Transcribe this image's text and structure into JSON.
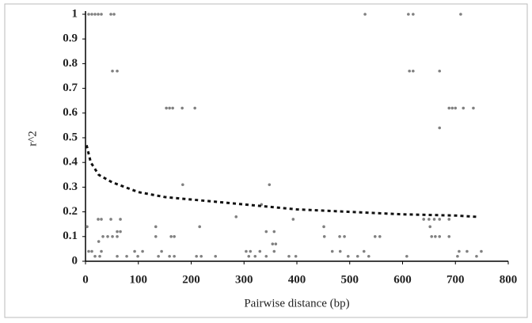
{
  "chart_data": {
    "type": "scatter",
    "x_label": "Pairwise distance (bp)",
    "y_label": "r^2",
    "xlim": [
      0,
      800
    ],
    "xticks": [
      0,
      100,
      200,
      300,
      400,
      500,
      600,
      700,
      800
    ],
    "ylim": [
      0,
      1
    ],
    "yticks": [
      0,
      0.1,
      0.2,
      0.3,
      0.4,
      0.5,
      0.6,
      0.7,
      0.8,
      0.9,
      1
    ],
    "grid": false,
    "series": [
      {
        "color": "#808080",
        "x": [
          6,
          12,
          18,
          24,
          30,
          48,
          54,
          529,
          611,
          620,
          710,
          51,
          60,
          613,
          620,
          670,
          153,
          159,
          165,
          183,
          207,
          688,
          694,
          700,
          715,
          734,
          670,
          184,
          348,
          333,
          285,
          24,
          30,
          48,
          66,
          393,
          640,
          650,
          660,
          670,
          688,
          3,
          133,
          216,
          451,
          652,
          60,
          66,
          342,
          357,
          33,
          42,
          51,
          60,
          133,
          162,
          168,
          452,
          481,
          490,
          548,
          557,
          655,
          662,
          670,
          688,
          25,
          354,
          360,
          6,
          12,
          30,
          93,
          108,
          144,
          304,
          312,
          330,
          357,
          467,
          482,
          527,
          707,
          722,
          749,
          18,
          27,
          60,
          78,
          99,
          138,
          159,
          168,
          210,
          219,
          246,
          309,
          321,
          342,
          385,
          398,
          497,
          515,
          536,
          608,
          704,
          740
        ],
        "values": [
          1,
          1,
          1,
          1,
          1,
          1,
          1,
          1,
          1,
          1,
          1,
          0.77,
          0.77,
          0.77,
          0.77,
          0.77,
          0.62,
          0.62,
          0.62,
          0.62,
          0.62,
          0.62,
          0.62,
          0.62,
          0.62,
          0.62,
          0.54,
          0.31,
          0.31,
          0.23,
          0.18,
          0.17,
          0.17,
          0.17,
          0.17,
          0.17,
          0.17,
          0.17,
          0.17,
          0.17,
          0.17,
          0.14,
          0.14,
          0.14,
          0.14,
          0.14,
          0.12,
          0.12,
          0.12,
          0.12,
          0.1,
          0.1,
          0.1,
          0.1,
          0.1,
          0.1,
          0.1,
          0.1,
          0.1,
          0.1,
          0.1,
          0.1,
          0.1,
          0.1,
          0.1,
          0.1,
          0.08,
          0.07,
          0.07,
          0.04,
          0.04,
          0.04,
          0.04,
          0.04,
          0.04,
          0.04,
          0.04,
          0.04,
          0.04,
          0.04,
          0.04,
          0.04,
          0.04,
          0.04,
          0.04,
          0.02,
          0.02,
          0.02,
          0.02,
          0.02,
          0.02,
          0.02,
          0.02,
          0.02,
          0.02,
          0.02,
          0.02,
          0.02,
          0.02,
          0.02,
          0.02,
          0.02,
          0.02,
          0.02,
          0.02,
          0.02,
          0.02
        ]
      }
    ],
    "trend": {
      "color": "#111111",
      "x": [
        2,
        10,
        25,
        50,
        100,
        150,
        200,
        300,
        400,
        500,
        600,
        700,
        740
      ],
      "values": [
        0.47,
        0.4,
        0.35,
        0.32,
        0.28,
        0.26,
        0.25,
        0.23,
        0.21,
        0.2,
        0.19,
        0.185,
        0.18
      ]
    }
  }
}
